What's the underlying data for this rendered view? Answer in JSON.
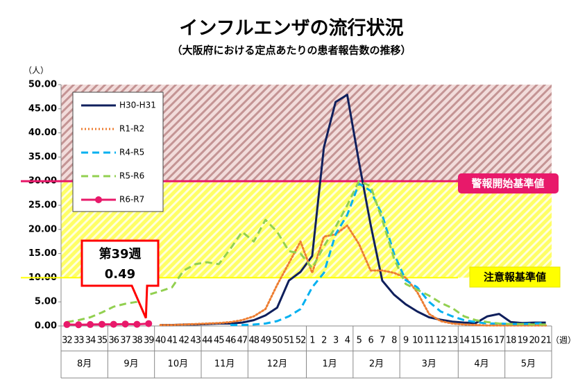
{
  "chart_data": {
    "type": "line",
    "title": "インフルエンザの流行状況",
    "subtitle": "（大阪府における定点あたりの患者報告数の推移）",
    "y_unit": "（人）",
    "x_unit": "（週）",
    "categories": [
      "32",
      "33",
      "34",
      "35",
      "36",
      "37",
      "38",
      "39",
      "40",
      "41",
      "42",
      "43",
      "44",
      "45",
      "46",
      "47",
      "48",
      "49",
      "50",
      "51",
      "52",
      "1",
      "2",
      "3",
      "4",
      "5",
      "6",
      "7",
      "8",
      "9",
      "10",
      "11",
      "12",
      "13",
      "14",
      "15",
      "16",
      "17",
      "18",
      "19",
      "20",
      "21"
    ],
    "month_groups": [
      {
        "label": "8月",
        "first": "32"
      },
      {
        "label": "9月",
        "first": "36"
      },
      {
        "label": "10月",
        "first": "40"
      },
      {
        "label": "11月",
        "first": "44"
      },
      {
        "label": "12月",
        "first": "48"
      },
      {
        "label": "1月",
        "first": "1"
      },
      {
        "label": "2月",
        "first": "5"
      },
      {
        "label": "3月",
        "first": "9"
      },
      {
        "label": "4月",
        "first": "14"
      },
      {
        "label": "5月",
        "first": "18"
      }
    ],
    "ylim": [
      0,
      50
    ],
    "yticks": [
      {
        "value": 0,
        "label": "0.00"
      },
      {
        "value": 5,
        "label": "5.00"
      },
      {
        "value": 10,
        "label": "10.00"
      },
      {
        "value": 15,
        "label": "15.00"
      },
      {
        "value": 20,
        "label": "20.00"
      },
      {
        "value": 25,
        "label": "25.00"
      },
      {
        "value": 30,
        "label": "30.00"
      },
      {
        "value": 35,
        "label": "35.00"
      },
      {
        "value": 40,
        "label": "40.00"
      },
      {
        "value": 45,
        "label": "45.00"
      },
      {
        "value": 50,
        "label": "50.00"
      }
    ],
    "thresholds": [
      {
        "value": 30,
        "label": "警報開始基準値",
        "color": "#e8196a"
      },
      {
        "value": 10,
        "label": "注意報基準値",
        "color": "#ffff00"
      }
    ],
    "annotation": {
      "text": "第39週",
      "color": "#ff0000"
    },
    "series": [
      {
        "name": "H30-H31",
        "color": "#0f1f5c",
        "style": "solid",
        "values": [
          null,
          null,
          null,
          null,
          null,
          null,
          null,
          null,
          0.2,
          0.2,
          0.3,
          0.3,
          0.4,
          0.5,
          0.5,
          0.7,
          1.2,
          2.2,
          3.8,
          9.4,
          11.2,
          14.5,
          37,
          46.4,
          47.9,
          34,
          21,
          9.4,
          6.5,
          4.5,
          3,
          1.8,
          1.3,
          0.9,
          0.7,
          0.6,
          2.0,
          2.5,
          0.8,
          0.6,
          0.7,
          0.7
        ]
      },
      {
        "name": "R1-R2",
        "color": "#ed7d31",
        "style": "dotted",
        "values": [
          null,
          null,
          null,
          null,
          null,
          null,
          null,
          null,
          0.2,
          0.2,
          0.3,
          0.4,
          0.5,
          0.6,
          0.8,
          1.2,
          2,
          3.5,
          8.5,
          13,
          17.5,
          11,
          18.5,
          19,
          20.8,
          17,
          11.5,
          11.5,
          11,
          10,
          7,
          2.5,
          1,
          0.5,
          0.3,
          0.2,
          0.1,
          0.1,
          0.1,
          0.1,
          0.1,
          0.1
        ]
      },
      {
        "name": "R4-R5",
        "color": "#00b0f0",
        "style": "dashed",
        "values": [
          null,
          null,
          null,
          null,
          null,
          null,
          null,
          null,
          null,
          null,
          null,
          null,
          null,
          null,
          0.2,
          0.2,
          0.3,
          0.5,
          1,
          2,
          3.5,
          8,
          11,
          19,
          23,
          29.5,
          28,
          23,
          15,
          9.5,
          8,
          5,
          3,
          2,
          1.2,
          0.8,
          0.5,
          0.5,
          0.4,
          0.4,
          0.5,
          0.6
        ]
      },
      {
        "name": "R5-R6",
        "color": "#92d050",
        "style": "dashed",
        "values": [
          0.8,
          1.2,
          1.8,
          2.8,
          4,
          4.6,
          5,
          6.5,
          7.2,
          8,
          11.5,
          12.8,
          13.2,
          12.8,
          16,
          19.5,
          17.5,
          22,
          19.5,
          15.5,
          15,
          12,
          16.5,
          20.5,
          25,
          30,
          29,
          22,
          14,
          8.7,
          7.5,
          6.3,
          4.8,
          3.7,
          2,
          1.2,
          0.8,
          0.5,
          0.4,
          0.4,
          0.3,
          0.3
        ]
      },
      {
        "name": "R6-R7",
        "color": "#e8196a",
        "style": "solid",
        "marker": true,
        "values": [
          0.3,
          0.25,
          0.3,
          0.35,
          0.35,
          0.4,
          0.35,
          0.49,
          null,
          null,
          null,
          null,
          null,
          null,
          null,
          null,
          null,
          null,
          null,
          null,
          null,
          null,
          null,
          null,
          null,
          null,
          null,
          null,
          null,
          null,
          null,
          null,
          null,
          null,
          null,
          null,
          null,
          null,
          null,
          null,
          null,
          null
        ]
      }
    ]
  }
}
